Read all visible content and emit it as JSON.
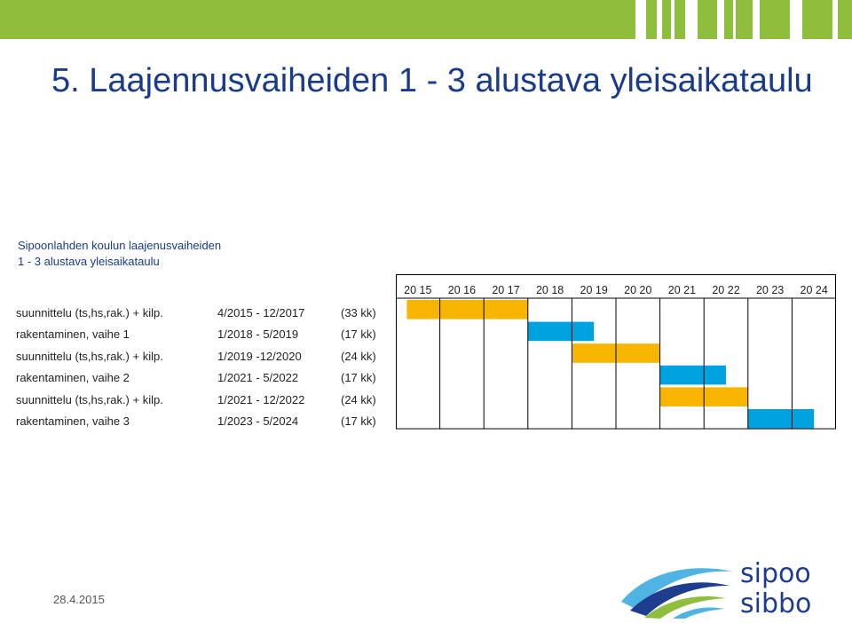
{
  "title": "5. Laajennusvaiheiden 1 - 3 alustava yleisaikataulu",
  "subtitle": {
    "line1": "Sipoonlahden koulun laajenusvaiheiden",
    "line2": "1 - 3 alustava yleisaikataulu"
  },
  "years": [
    "20 15",
    "20 16",
    "20 17",
    "20 18",
    "20 19",
    "20 20",
    "20 21",
    "20 22",
    "20 23",
    "20 24"
  ],
  "tasks": [
    {
      "name": "suunnittelu (ts,hs,rak.) + kilp.",
      "period": "4/2015 - 12/2017",
      "duration": "(33 kk)",
      "start": 2015.25,
      "end": 2018.0,
      "kind": "planning"
    },
    {
      "name": "rakentaminen, vaihe 1",
      "period": "1/2018 - 5/2019",
      "duration": "(17 kk)",
      "start": 2018.0,
      "end": 2019.5,
      "kind": "construction"
    },
    {
      "name": "suunnittelu (ts,hs,rak.) + kilp.",
      "period": "1/2019 -12/2020",
      "duration": "(24 kk)",
      "start": 2019.0,
      "end": 2021.0,
      "kind": "planning"
    },
    {
      "name": "rakentaminen, vaihe 2",
      "period": "1/2021 - 5/2022",
      "duration": "(17 kk)",
      "start": 2021.0,
      "end": 2022.5,
      "kind": "construction"
    },
    {
      "name": "suunnittelu (ts,hs,rak.) + kilp.",
      "period": "1/2021 - 12/2022",
      "duration": "(24 kk)",
      "start": 2021.0,
      "end": 2023.0,
      "kind": "planning"
    },
    {
      "name": "rakentaminen, vaihe 3",
      "period": "1/2023 - 5/2024",
      "duration": "(17 kk)",
      "start": 2023.0,
      "end": 2024.5,
      "kind": "construction"
    }
  ],
  "colors": {
    "planning": "#f7b500",
    "construction": "#00a3e0",
    "title": "#1a3a8c",
    "band": "#8fbd3c"
  },
  "footer": {
    "date": "28.4.2015"
  },
  "logo": {
    "line1": "sipoo",
    "line2": "sibbo"
  }
}
